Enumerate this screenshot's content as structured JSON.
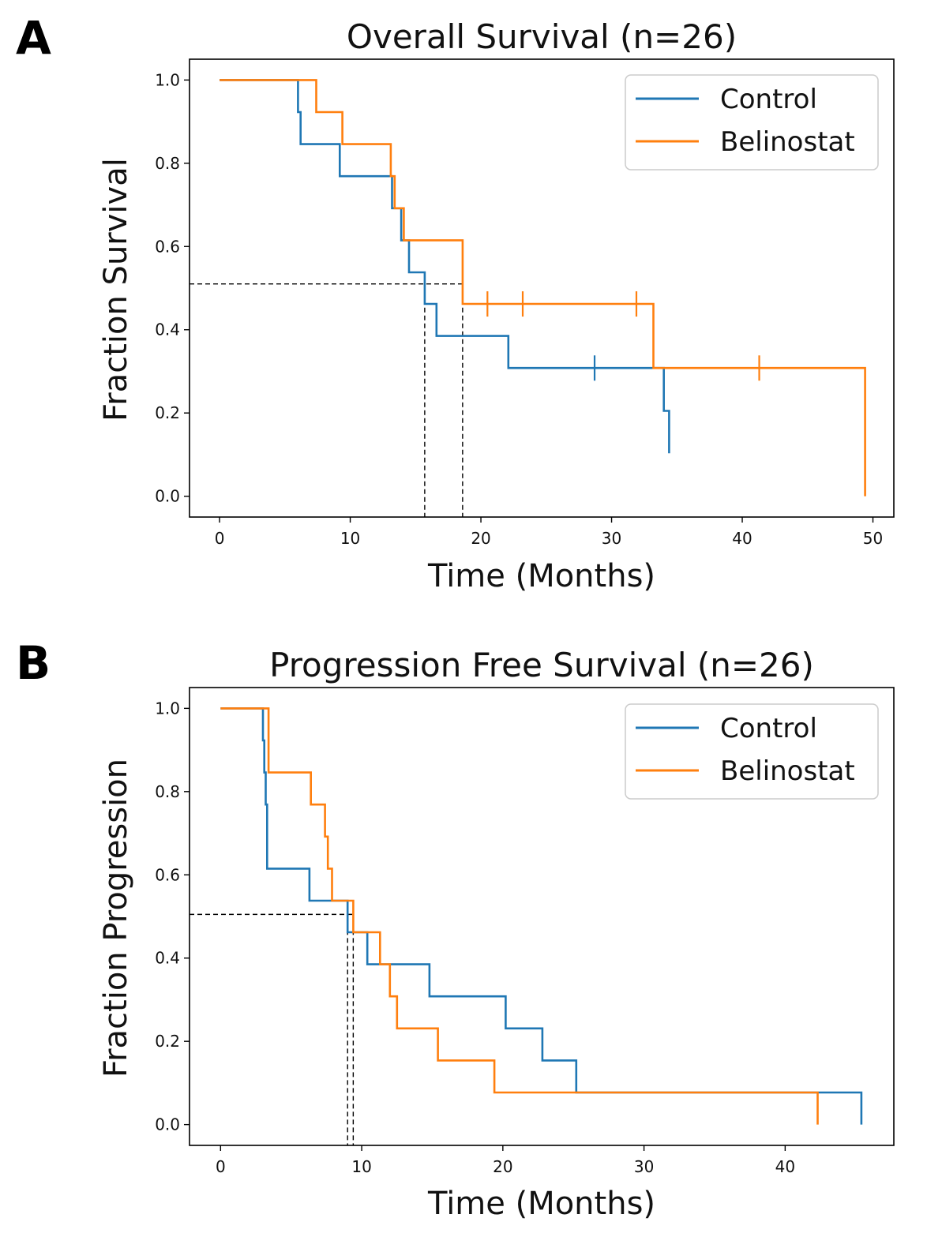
{
  "colors": {
    "control": "#1f77b4",
    "belinostat": "#ff7f0e",
    "axis": "#000000",
    "median_line": "#000000"
  },
  "chart_data": [
    {
      "panel": "A",
      "type": "line",
      "subtype": "kaplan-meier step",
      "title": "Overall Survival (n=26)",
      "xlabel": "Time (Months)",
      "ylabel": "Fraction Survival",
      "xlim": [
        -2.3,
        51.6
      ],
      "ylim": [
        -0.05,
        1.05
      ],
      "xticks": [
        0,
        10,
        20,
        30,
        40,
        50
      ],
      "xtick_labels": [
        "0",
        "10",
        "20",
        "30",
        "40",
        "50"
      ],
      "yticks": [
        0.0,
        0.2,
        0.4,
        0.6,
        0.8,
        1.0
      ],
      "ytick_labels": [
        "0.0",
        "0.2",
        "0.4",
        "0.6",
        "0.8",
        "1.0"
      ],
      "legend": {
        "position": "top-right",
        "entries": [
          "Control",
          "Belinostat"
        ]
      },
      "series": [
        {
          "name": "Control",
          "x": [
            0,
            6.0,
            6.0,
            6.2,
            6.2,
            9.2,
            9.2,
            13.2,
            13.2,
            13.9,
            13.9,
            14.5,
            14.5,
            15.7,
            15.7,
            16.6,
            16.6,
            22.1,
            22.1,
            34.0,
            34.0,
            34.4,
            34.4
          ],
          "y": [
            1.0,
            1.0,
            0.923,
            0.923,
            0.846,
            0.846,
            0.769,
            0.769,
            0.692,
            0.692,
            0.615,
            0.615,
            0.538,
            0.538,
            0.462,
            0.462,
            0.385,
            0.385,
            0.308,
            0.308,
            0.205,
            0.205,
            0.103
          ],
          "censor_x": [
            28.7
          ],
          "censor_y": [
            0.308
          ]
        },
        {
          "name": "Belinostat",
          "x": [
            0,
            7.4,
            7.4,
            9.4,
            9.4,
            13.1,
            13.1,
            13.4,
            13.4,
            14.1,
            14.1,
            18.6,
            18.6,
            33.2,
            33.2,
            49.4,
            49.4
          ],
          "y": [
            1.0,
            1.0,
            0.923,
            0.923,
            0.846,
            0.846,
            0.769,
            0.769,
            0.692,
            0.692,
            0.615,
            0.615,
            0.462,
            0.462,
            0.308,
            0.308,
            0.0
          ],
          "censor_x": [
            20.5,
            23.2,
            31.9,
            41.3
          ],
          "censor_y": [
            0.462,
            0.462,
            0.462,
            0.308
          ]
        }
      ],
      "median_guides": {
        "y": 0.51,
        "x": [
          15.7,
          18.6
        ]
      }
    },
    {
      "panel": "B",
      "type": "line",
      "subtype": "kaplan-meier step",
      "title": "Progression Free Survival (n=26)",
      "xlabel": "Time (Months)",
      "ylabel": "Fraction Progression",
      "xlim": [
        -2.2,
        47.7
      ],
      "ylim": [
        -0.05,
        1.05
      ],
      "xticks": [
        0,
        10,
        20,
        30,
        40
      ],
      "xtick_labels": [
        "0",
        "10",
        "20",
        "30",
        "40"
      ],
      "yticks": [
        0.0,
        0.2,
        0.4,
        0.6,
        0.8,
        1.0
      ],
      "ytick_labels": [
        "0.0",
        "0.2",
        "0.4",
        "0.6",
        "0.8",
        "1.0"
      ],
      "legend": {
        "position": "top-right",
        "entries": [
          "Control",
          "Belinostat"
        ]
      },
      "series": [
        {
          "name": "Control",
          "x": [
            0,
            3.0,
            3.0,
            3.1,
            3.1,
            3.2,
            3.2,
            3.3,
            3.3,
            6.3,
            6.3,
            9.0,
            9.0,
            10.4,
            10.4,
            14.8,
            14.8,
            20.2,
            20.2,
            22.8,
            22.8,
            25.2,
            25.2,
            45.4,
            45.4
          ],
          "y": [
            1.0,
            1.0,
            0.923,
            0.923,
            0.846,
            0.846,
            0.769,
            0.769,
            0.615,
            0.615,
            0.538,
            0.538,
            0.462,
            0.462,
            0.385,
            0.385,
            0.308,
            0.308,
            0.231,
            0.231,
            0.154,
            0.154,
            0.077,
            0.077,
            0.0
          ],
          "censor_x": [],
          "censor_y": []
        },
        {
          "name": "Belinostat",
          "x": [
            0,
            3.4,
            3.4,
            6.4,
            6.4,
            7.4,
            7.4,
            7.6,
            7.6,
            7.9,
            7.9,
            9.4,
            9.4,
            11.3,
            11.3,
            12.0,
            12.0,
            12.5,
            12.5,
            15.4,
            15.4,
            19.4,
            19.4,
            42.3,
            42.3
          ],
          "y": [
            1.0,
            1.0,
            0.846,
            0.846,
            0.769,
            0.769,
            0.692,
            0.692,
            0.615,
            0.615,
            0.538,
            0.538,
            0.462,
            0.462,
            0.385,
            0.385,
            0.308,
            0.308,
            0.231,
            0.231,
            0.154,
            0.154,
            0.077,
            0.077,
            0.0
          ],
          "censor_x": [],
          "censor_y": []
        }
      ],
      "median_guides": {
        "y": 0.505,
        "x": [
          9.0,
          9.4
        ]
      }
    }
  ]
}
